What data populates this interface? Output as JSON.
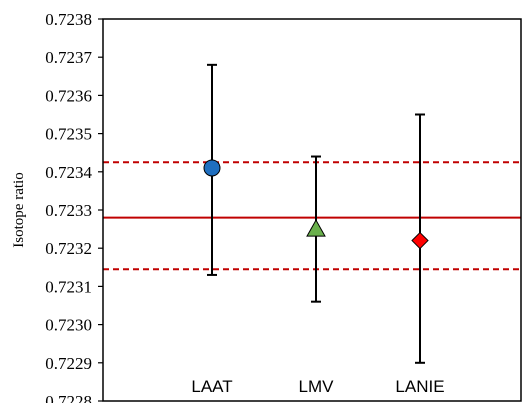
{
  "chart_data": {
    "type": "scatter",
    "title": "",
    "xlabel": "",
    "ylabel": "Isotope ratio",
    "ylim": [
      0.7228,
      0.7238
    ],
    "ytick_step": 0.0001,
    "ytick_labels": [
      "0.7228",
      "0.7229",
      "0.7230",
      "0.7231",
      "0.7232",
      "0.7233",
      "0.7234",
      "0.7235",
      "0.7236",
      "0.7237",
      "0.7238"
    ],
    "categories": [
      "LAAT",
      "LMV",
      "LANIE"
    ],
    "points": [
      {
        "category": "LAAT",
        "value": 0.72341,
        "err_low": 0.72313,
        "err_high": 0.72368,
        "marker": "circle",
        "color": "#1f6fc0"
      },
      {
        "category": "LMV",
        "value": 0.72325,
        "err_low": 0.72306,
        "err_high": 0.72344,
        "marker": "triangle",
        "color": "#6ab04c"
      },
      {
        "category": "LANIE",
        "value": 0.72322,
        "err_low": 0.7229,
        "err_high": 0.72355,
        "marker": "diamond",
        "color": "#ff0000"
      }
    ],
    "reference_lines": [
      {
        "value": 0.72328,
        "style": "solid",
        "color": "#c00000"
      },
      {
        "value": 0.723425,
        "style": "dashed",
        "color": "#c00000"
      },
      {
        "value": 0.723145,
        "style": "dashed",
        "color": "#c00000"
      }
    ],
    "grid": false,
    "legend": "none"
  }
}
